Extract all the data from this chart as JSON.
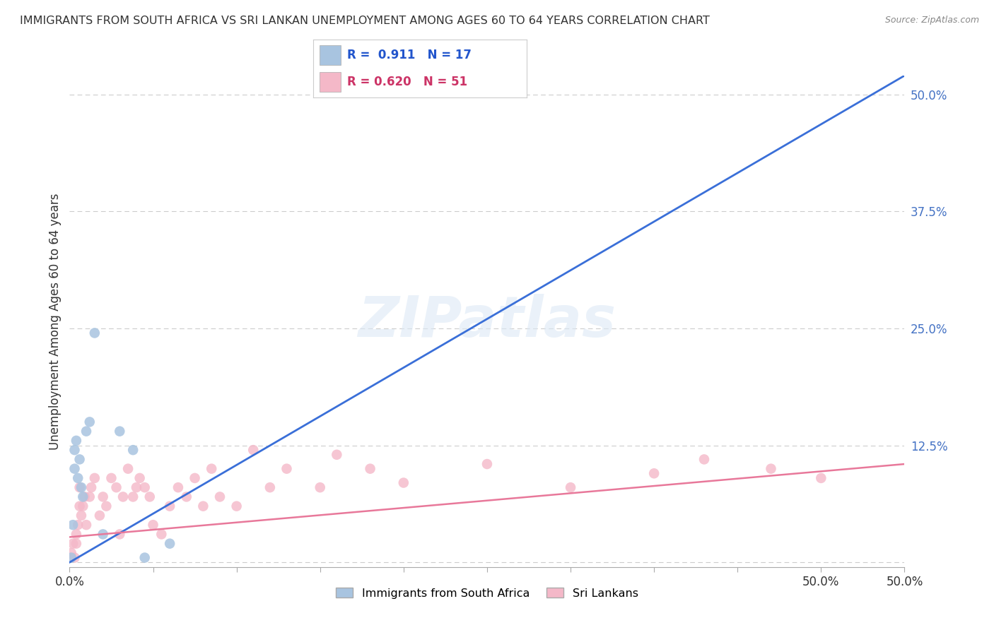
{
  "title": "IMMIGRANTS FROM SOUTH AFRICA VS SRI LANKAN UNEMPLOYMENT AMONG AGES 60 TO 64 YEARS CORRELATION CHART",
  "source": "Source: ZipAtlas.com",
  "ylabel": "Unemployment Among Ages 60 to 64 years",
  "xlim": [
    0,
    0.5
  ],
  "ylim": [
    -0.005,
    0.52
  ],
  "xticks": [
    0.0,
    0.05,
    0.1,
    0.15,
    0.2,
    0.25,
    0.3,
    0.35,
    0.4,
    0.45,
    0.5
  ],
  "xticklabels_show": {
    "0.0": "0.0%",
    "0.5": "50.0%"
  },
  "yticks": [
    0.0,
    0.125,
    0.25,
    0.375,
    0.5
  ],
  "yticklabels": [
    "",
    "12.5%",
    "25.0%",
    "37.5%",
    "50.0%"
  ],
  "watermark": "ZIPatlas",
  "series1_label": "Immigrants from South Africa",
  "series1_R": "0.911",
  "series1_N": "17",
  "series1_color": "#a8c4e0",
  "series1_line_color": "#3a6fd8",
  "series2_label": "Sri Lankans",
  "series2_R": "0.620",
  "series2_N": "51",
  "series2_color": "#f4b8c8",
  "series2_line_color": "#e8789a",
  "blue_scatter_x": [
    0.001,
    0.002,
    0.003,
    0.003,
    0.004,
    0.005,
    0.006,
    0.007,
    0.008,
    0.01,
    0.012,
    0.015,
    0.02,
    0.03,
    0.038,
    0.045,
    0.06
  ],
  "blue_scatter_y": [
    0.005,
    0.04,
    0.12,
    0.1,
    0.13,
    0.09,
    0.11,
    0.08,
    0.07,
    0.14,
    0.15,
    0.245,
    0.03,
    0.14,
    0.12,
    0.005,
    0.02
  ],
  "pink_scatter_x": [
    0.001,
    0.002,
    0.003,
    0.004,
    0.004,
    0.005,
    0.006,
    0.006,
    0.007,
    0.008,
    0.009,
    0.01,
    0.012,
    0.013,
    0.015,
    0.018,
    0.02,
    0.022,
    0.025,
    0.028,
    0.03,
    0.032,
    0.035,
    0.038,
    0.04,
    0.042,
    0.045,
    0.048,
    0.05,
    0.055,
    0.06,
    0.065,
    0.07,
    0.075,
    0.08,
    0.085,
    0.09,
    0.1,
    0.11,
    0.12,
    0.13,
    0.15,
    0.16,
    0.18,
    0.2,
    0.25,
    0.3,
    0.35,
    0.38,
    0.42,
    0.45
  ],
  "pink_scatter_y": [
    0.01,
    0.02,
    0.005,
    0.03,
    0.02,
    0.04,
    0.06,
    0.08,
    0.05,
    0.06,
    0.07,
    0.04,
    0.07,
    0.08,
    0.09,
    0.05,
    0.07,
    0.06,
    0.09,
    0.08,
    0.03,
    0.07,
    0.1,
    0.07,
    0.08,
    0.09,
    0.08,
    0.07,
    0.04,
    0.03,
    0.06,
    0.08,
    0.07,
    0.09,
    0.06,
    0.1,
    0.07,
    0.06,
    0.12,
    0.08,
    0.1,
    0.08,
    0.115,
    0.1,
    0.085,
    0.105,
    0.08,
    0.095,
    0.11,
    0.1,
    0.09
  ],
  "blue_trend_x": [
    0.0,
    0.5
  ],
  "blue_trend_y": [
    0.0,
    0.52
  ],
  "pink_trend_x": [
    0.0,
    0.5
  ],
  "pink_trend_y": [
    0.027,
    0.105
  ],
  "right_tick_color": "#4472c4",
  "grid_color": "#cccccc",
  "background_color": "#ffffff"
}
